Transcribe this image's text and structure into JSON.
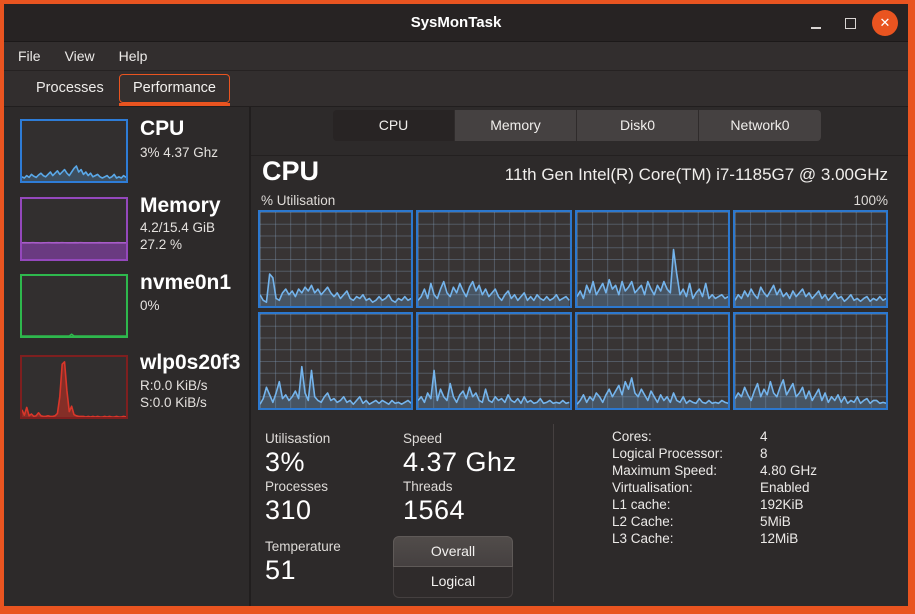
{
  "window": {
    "title": "SysMonTask",
    "minimize": "",
    "maximize": "",
    "close": "✕"
  },
  "menu": {
    "file": "File",
    "view": "View",
    "help": "Help"
  },
  "page_tabs": {
    "processes": "Processes",
    "performance": "Performance"
  },
  "device_tabs": [
    {
      "label": "CPU"
    },
    {
      "label": "Memory"
    },
    {
      "label": "Disk0"
    },
    {
      "label": "Network0"
    }
  ],
  "colors": {
    "accent": "#E95420",
    "cpu_blue": "#2e7cd6",
    "memory_purple": "#9448bc",
    "disk_green": "#2eb84d",
    "network_red": "#7e1f1f"
  },
  "sidebar": {
    "cpu": {
      "title": "CPU",
      "sub": "3% 4.37 Ghz",
      "chart": {
        "type": "line",
        "max": 100,
        "line": "#5aa8e8",
        "fill": "rgba(90,160,220,0.28)",
        "values": [
          7,
          5,
          9,
          6,
          11,
          8,
          6,
          10,
          13,
          9,
          7,
          11,
          15,
          9,
          13,
          17,
          11,
          15,
          19,
          13,
          9,
          15,
          21,
          25,
          15,
          19,
          11,
          15,
          9,
          13,
          7,
          9,
          11,
          7,
          5,
          7,
          9,
          5,
          7,
          11,
          5,
          7,
          5,
          9,
          6
        ]
      }
    },
    "memory": {
      "title": "Memory",
      "line1": "4.2/15.4 GiB",
      "line2": "27.2 %",
      "chart": {
        "type": "area",
        "max": 100,
        "line": "#a85cc9",
        "fill": "rgba(125,63,158,0.75)",
        "values": [
          27,
          27.2,
          26.9,
          27,
          27.3,
          27,
          27.1,
          26.8,
          27,
          27.1,
          27.3,
          27,
          26.9,
          27.2,
          27,
          27.3,
          27.1,
          27,
          26.9,
          27,
          27.2,
          27,
          27.3,
          27,
          27.1,
          26.9,
          27,
          27.1,
          27,
          27.2,
          27,
          27.1,
          27,
          26.9,
          27.1,
          27,
          27.2,
          27,
          27.1,
          27
        ]
      }
    },
    "disk": {
      "title": "nvme0n1",
      "line1": "0%",
      "chart": {
        "type": "line",
        "max": 100,
        "line": "#2eb84d",
        "fill": "rgba(46,184,77,0.3)",
        "values": [
          0,
          0,
          0,
          0,
          0,
          0,
          0,
          0,
          0,
          0,
          0,
          0,
          0,
          0,
          0,
          0,
          0,
          0,
          0,
          0,
          0,
          3,
          0,
          0,
          0,
          0,
          0,
          0,
          0,
          0,
          0,
          0,
          0,
          0,
          0,
          0,
          0,
          0,
          0,
          0,
          0,
          0,
          0,
          0,
          0
        ]
      }
    },
    "network": {
      "title": "wlp0s20f3",
      "line1": "R:0.0 KiB/s",
      "line2": "S:0.0 KiB/s",
      "chart": {
        "type": "line",
        "max": 100,
        "line": "#d9362a",
        "fill": "rgba(200,45,32,0.55)",
        "values": [
          12,
          3,
          16,
          2,
          5,
          1,
          2,
          7,
          2,
          1,
          1,
          2,
          1,
          1,
          2,
          6,
          34,
          88,
          92,
          44,
          9,
          18,
          4,
          2,
          1,
          1,
          1,
          0,
          1,
          0,
          1,
          0,
          1,
          0,
          0,
          1,
          0,
          1,
          0,
          0,
          1,
          0,
          0,
          1,
          0
        ]
      }
    }
  },
  "main": {
    "header": {
      "title": "CPU",
      "cpu_name": "11th Gen Intel(R) Core(TM) i7-1185G7 @ 3.00GHz"
    },
    "graph": {
      "ylabel": "% Utilisation",
      "ymax_label": "100%",
      "cores": [
        {
          "max": 100,
          "line": "#74b4ec",
          "fill": "rgba(116,180,236,0.25)",
          "values": [
            12,
            6,
            4,
            34,
            30,
            8,
            6,
            14,
            18,
            12,
            16,
            10,
            18,
            14,
            20,
            16,
            22,
            14,
            18,
            12,
            16,
            20,
            14,
            10,
            14,
            8,
            12,
            16,
            8,
            6,
            10,
            8,
            12,
            6,
            8,
            4,
            6,
            10,
            6,
            8,
            12,
            6,
            4,
            8,
            6,
            10,
            6,
            8
          ]
        },
        {
          "max": 100,
          "line": "#74b4ec",
          "fill": "rgba(116,180,236,0.25)",
          "values": [
            6,
            10,
            18,
            8,
            24,
            12,
            8,
            18,
            26,
            14,
            10,
            20,
            14,
            24,
            16,
            10,
            20,
            26,
            16,
            22,
            12,
            18,
            10,
            14,
            18,
            10,
            6,
            12,
            16,
            8,
            12,
            6,
            10,
            14,
            6,
            10,
            6,
            12,
            8,
            6,
            10,
            6,
            8,
            12,
            6,
            8,
            10,
            6
          ]
        },
        {
          "max": 100,
          "line": "#74b4ec",
          "fill": "rgba(116,180,236,0.25)",
          "values": [
            10,
            16,
            8,
            22,
            14,
            26,
            12,
            18,
            24,
            14,
            28,
            18,
            22,
            12,
            26,
            16,
            20,
            26,
            14,
            18,
            22,
            12,
            26,
            18,
            12,
            22,
            16,
            26,
            18,
            14,
            60,
            34,
            12,
            18,
            10,
            24,
            8,
            14,
            18,
            10,
            24,
            8,
            12,
            8,
            10,
            12,
            8,
            10
          ]
        },
        {
          "max": 100,
          "line": "#74b4ec",
          "fill": "rgba(116,180,236,0.25)",
          "values": [
            6,
            12,
            8,
            16,
            10,
            18,
            12,
            8,
            20,
            14,
            10,
            16,
            22,
            12,
            18,
            10,
            14,
            8,
            16,
            10,
            14,
            18,
            10,
            14,
            8,
            12,
            16,
            8,
            12,
            6,
            10,
            14,
            8,
            10,
            5,
            8,
            12,
            6,
            8,
            5,
            8,
            10,
            5,
            8,
            6,
            10,
            6,
            8
          ]
        },
        {
          "max": 100,
          "line": "#74b4ec",
          "fill": "rgba(116,180,236,0.25)",
          "values": [
            4,
            10,
            22,
            14,
            6,
            16,
            28,
            10,
            14,
            8,
            12,
            18,
            10,
            44,
            16,
            8,
            40,
            12,
            8,
            6,
            12,
            16,
            8,
            10,
            6,
            8,
            12,
            6,
            8,
            4,
            8,
            12,
            5,
            8,
            4,
            6,
            8,
            5,
            8,
            6,
            4,
            8,
            5,
            6,
            4,
            6,
            8,
            5
          ]
        },
        {
          "max": 100,
          "line": "#74b4ec",
          "fill": "rgba(116,180,236,0.25)",
          "values": [
            8,
            12,
            6,
            16,
            10,
            40,
            8,
            20,
            12,
            8,
            26,
            12,
            6,
            14,
            18,
            10,
            22,
            12,
            16,
            8,
            6,
            20,
            8,
            6,
            12,
            8,
            10,
            6,
            14,
            8,
            6,
            10,
            5,
            12,
            6,
            8,
            5,
            6,
            10,
            5,
            6,
            8,
            5,
            6,
            5,
            8,
            5,
            6
          ]
        },
        {
          "max": 100,
          "line": "#74b4ec",
          "fill": "rgba(116,180,236,0.25)",
          "values": [
            4,
            8,
            14,
            6,
            12,
            8,
            16,
            12,
            6,
            14,
            20,
            12,
            18,
            24,
            14,
            28,
            20,
            32,
            16,
            12,
            20,
            14,
            8,
            18,
            12,
            6,
            14,
            8,
            12,
            6,
            16,
            8,
            6,
            12,
            5,
            8,
            6,
            5,
            10,
            6,
            5,
            8,
            5,
            6,
            5,
            8,
            6,
            5
          ]
        },
        {
          "max": 100,
          "line": "#74b4ec",
          "fill": "rgba(116,180,236,0.25)",
          "values": [
            10,
            16,
            12,
            22,
            14,
            8,
            18,
            26,
            12,
            20,
            14,
            28,
            16,
            12,
            22,
            30,
            14,
            20,
            26,
            12,
            16,
            22,
            10,
            18,
            8,
            14,
            20,
            8,
            16,
            6,
            12,
            8,
            14,
            6,
            12,
            5,
            8,
            6,
            12,
            5,
            8,
            10,
            5,
            8,
            8,
            5,
            6,
            5
          ]
        }
      ]
    },
    "stats": {
      "utilisation_label": "Utilisastion",
      "utilisation_value": "3%",
      "speed_label": "Speed",
      "speed_value": "4.37 Ghz",
      "processes_label": "Processes",
      "processes_value": "310",
      "threads_label": "Threads",
      "threads_value": "1564",
      "temperature_label": "Temperature",
      "temperature_value": "51",
      "overall_button": "Overall",
      "logical_button": "Logical"
    },
    "info": {
      "rows": [
        {
          "label": "Cores:",
          "value": "4"
        },
        {
          "label": "Logical Processor:",
          "value": "8"
        },
        {
          "label": "Maximum Speed:",
          "value": "4.80 GHz"
        },
        {
          "label": "Virtualisation:",
          "value": "Enabled"
        },
        {
          "label": "L1 cache:",
          "value": "192KiB"
        },
        {
          "label": "L2 Cache:",
          "value": "5MiB"
        },
        {
          "label": "L3 Cache:",
          "value": "12MiB"
        }
      ]
    }
  }
}
